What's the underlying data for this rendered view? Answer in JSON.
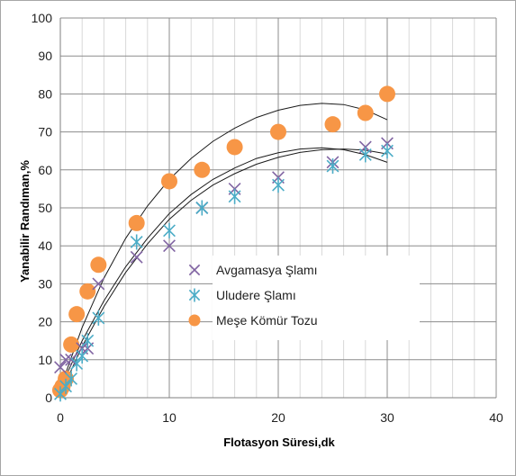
{
  "chart_data": {
    "type": "scatter",
    "xlabel": "Flotasyon Süresi,dk",
    "ylabel": "Yanabilir Randıman,%",
    "xlim": [
      0,
      40
    ],
    "ylim": [
      0,
      100
    ],
    "xticks": [
      0,
      10,
      20,
      30,
      40
    ],
    "yticks": [
      0,
      10,
      20,
      30,
      40,
      50,
      60,
      70,
      80,
      90,
      100
    ],
    "grid": true,
    "legend_position": "center-right",
    "series": [
      {
        "name": "Avgamasya Şlamı",
        "marker": "x",
        "color": "#8064a2",
        "x": [
          0,
          0.5,
          1,
          2,
          2.5,
          3.5,
          7,
          10,
          13,
          16,
          20,
          25,
          28,
          30
        ],
        "y": [
          8,
          10,
          10,
          13,
          13,
          30,
          37,
          40,
          50,
          55,
          58,
          62,
          66,
          67
        ],
        "trend": [
          [
            0,
            2.5
          ],
          [
            2,
            15
          ],
          [
            4,
            25.5
          ],
          [
            6,
            34.5
          ],
          [
            8,
            42
          ],
          [
            10,
            48.5
          ],
          [
            12,
            53.5
          ],
          [
            14,
            57.5
          ],
          [
            16,
            60.5
          ],
          [
            18,
            63
          ],
          [
            20,
            64.5
          ],
          [
            22,
            65.5
          ],
          [
            24,
            65.8
          ],
          [
            26,
            65.3
          ],
          [
            28,
            64
          ],
          [
            30,
            62
          ]
        ]
      },
      {
        "name": "Uludere Şlamı",
        "marker": "asterisk",
        "color": "#4bacc6",
        "x": [
          0,
          0.5,
          1,
          1.5,
          2,
          2.5,
          3.5,
          7,
          10,
          13,
          16,
          20,
          25,
          28,
          30
        ],
        "y": [
          1,
          3,
          5,
          9,
          11,
          15,
          21,
          41,
          44,
          50,
          53,
          56,
          61,
          64,
          65
        ],
        "trend": [
          [
            0,
            1
          ],
          [
            2,
            13.5
          ],
          [
            4,
            24
          ],
          [
            6,
            33
          ],
          [
            8,
            40.5
          ],
          [
            10,
            47
          ],
          [
            12,
            52
          ],
          [
            14,
            56
          ],
          [
            16,
            59
          ],
          [
            18,
            61.5
          ],
          [
            20,
            63.3
          ],
          [
            22,
            64.6
          ],
          [
            24,
            65.3
          ],
          [
            26,
            65.5
          ],
          [
            28,
            65.2
          ],
          [
            30,
            64.2
          ]
        ]
      },
      {
        "name": "Meşe Kömür Tozu",
        "marker": "circle",
        "color": "#f79646",
        "x": [
          0,
          0.2,
          0.5,
          1,
          1.5,
          2.5,
          3.5,
          7,
          10,
          13,
          16,
          20,
          25,
          28,
          30
        ],
        "y": [
          2,
          3,
          5,
          14,
          22,
          28,
          35,
          46,
          57,
          60,
          66,
          70,
          72,
          75,
          80
        ],
        "trend": [
          [
            0,
            2.5
          ],
          [
            2,
            18.5
          ],
          [
            4,
            31.5
          ],
          [
            6,
            42
          ],
          [
            8,
            50.5
          ],
          [
            10,
            57.5
          ],
          [
            12,
            63
          ],
          [
            14,
            67.5
          ],
          [
            16,
            71
          ],
          [
            18,
            73.8
          ],
          [
            20,
            75.7
          ],
          [
            22,
            77
          ],
          [
            24,
            77.5
          ],
          [
            26,
            77.2
          ],
          [
            28,
            75.8
          ],
          [
            30,
            73.2
          ]
        ]
      }
    ]
  }
}
